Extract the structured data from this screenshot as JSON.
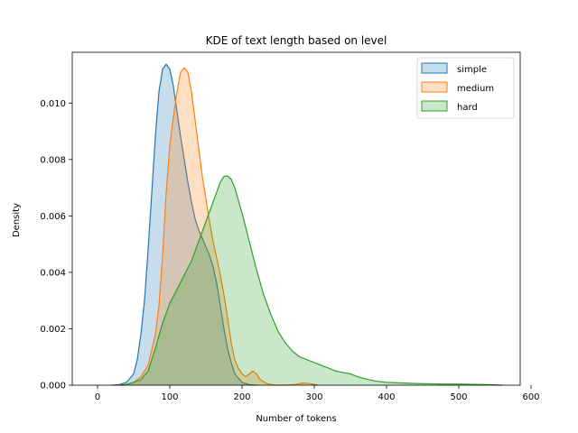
{
  "chart_data": {
    "type": "area",
    "title": "KDE of text length based on level",
    "xlabel": "Number of tokens",
    "ylabel": "Density",
    "xlim": [
      -35,
      585
    ],
    "ylim": [
      0,
      0.0118
    ],
    "xticks": [
      0,
      100,
      200,
      300,
      400,
      500,
      600
    ],
    "xtick_labels": [
      "0",
      "100",
      "200",
      "300",
      "400",
      "500",
      "600"
    ],
    "yticks": [
      0,
      0.002,
      0.004,
      0.006,
      0.008,
      0.01
    ],
    "ytick_labels": [
      "0.000",
      "0.002",
      "0.004",
      "0.006",
      "0.008",
      "0.010"
    ],
    "grid": false,
    "legend_position": "top-right",
    "series": [
      {
        "name": "simple",
        "color": "#1f77b4",
        "fill_opacity": 0.25,
        "points": [
          [
            20,
            0
          ],
          [
            30,
            2e-05
          ],
          [
            40,
            0.0001
          ],
          [
            50,
            0.0004
          ],
          [
            55,
            0.0009
          ],
          [
            60,
            0.0018
          ],
          [
            65,
            0.003
          ],
          [
            70,
            0.0048
          ],
          [
            75,
            0.0068
          ],
          [
            80,
            0.0088
          ],
          [
            85,
            0.0104
          ],
          [
            90,
            0.0112
          ],
          [
            95,
            0.01138
          ],
          [
            100,
            0.0112
          ],
          [
            105,
            0.0106
          ],
          [
            110,
            0.0097
          ],
          [
            115,
            0.0088
          ],
          [
            120,
            0.008
          ],
          [
            125,
            0.0072
          ],
          [
            130,
            0.0065
          ],
          [
            135,
            0.0059
          ],
          [
            140,
            0.0055
          ],
          [
            145,
            0.0052
          ],
          [
            150,
            0.0049
          ],
          [
            155,
            0.0046
          ],
          [
            160,
            0.0042
          ],
          [
            165,
            0.0036
          ],
          [
            170,
            0.0028
          ],
          [
            175,
            0.002
          ],
          [
            180,
            0.0013
          ],
          [
            185,
            0.0008
          ],
          [
            190,
            0.0004
          ],
          [
            200,
            0.0001
          ],
          [
            210,
            2e-05
          ],
          [
            220,
            0
          ]
        ]
      },
      {
        "name": "medium",
        "color": "#ff7f0e",
        "fill_opacity": 0.25,
        "points": [
          [
            30,
            0
          ],
          [
            40,
            3e-05
          ],
          [
            50,
            0.0001
          ],
          [
            60,
            0.0003
          ],
          [
            70,
            0.0007
          ],
          [
            80,
            0.0018
          ],
          [
            85,
            0.0028
          ],
          [
            90,
            0.0046
          ],
          [
            95,
            0.0068
          ],
          [
            100,
            0.0085
          ],
          [
            105,
            0.0095
          ],
          [
            110,
            0.0104
          ],
          [
            115,
            0.0111
          ],
          [
            120,
            0.01125
          ],
          [
            125,
            0.0111
          ],
          [
            130,
            0.0104
          ],
          [
            135,
            0.0094
          ],
          [
            140,
            0.0084
          ],
          [
            145,
            0.0074
          ],
          [
            150,
            0.0066
          ],
          [
            155,
            0.0058
          ],
          [
            160,
            0.0051
          ],
          [
            165,
            0.0045
          ],
          [
            170,
            0.0039
          ],
          [
            175,
            0.0032
          ],
          [
            180,
            0.0024
          ],
          [
            185,
            0.0015
          ],
          [
            190,
            0.0009
          ],
          [
            195,
            0.0006
          ],
          [
            200,
            0.0004
          ],
          [
            205,
            0.0003
          ],
          [
            210,
            0.0004
          ],
          [
            215,
            0.0005
          ],
          [
            220,
            0.0004
          ],
          [
            225,
            0.0002
          ],
          [
            235,
            5e-05
          ],
          [
            245,
            0
          ],
          [
            260,
            0
          ],
          [
            275,
            3e-05
          ],
          [
            285,
            8e-05
          ],
          [
            295,
            5e-05
          ],
          [
            305,
            0
          ]
        ]
      },
      {
        "name": "hard",
        "color": "#2ca02c",
        "fill_opacity": 0.25,
        "points": [
          [
            30,
            0
          ],
          [
            40,
            2e-05
          ],
          [
            50,
            0.0001
          ],
          [
            60,
            0.0002
          ],
          [
            70,
            0.0005
          ],
          [
            80,
            0.0013
          ],
          [
            90,
            0.0022
          ],
          [
            100,
            0.0029
          ],
          [
            110,
            0.0034
          ],
          [
            120,
            0.0039
          ],
          [
            130,
            0.0044
          ],
          [
            140,
            0.0051
          ],
          [
            150,
            0.0058
          ],
          [
            160,
            0.0065
          ],
          [
            170,
            0.0072
          ],
          [
            175,
            0.0074
          ],
          [
            180,
            0.00742
          ],
          [
            185,
            0.0073
          ],
          [
            190,
            0.007
          ],
          [
            200,
            0.0061
          ],
          [
            210,
            0.0051
          ],
          [
            220,
            0.0041
          ],
          [
            230,
            0.0032
          ],
          [
            240,
            0.0025
          ],
          [
            250,
            0.0019
          ],
          [
            260,
            0.0015
          ],
          [
            270,
            0.0012
          ],
          [
            280,
            0.001
          ],
          [
            290,
            0.0009
          ],
          [
            300,
            0.0008
          ],
          [
            310,
            0.0007
          ],
          [
            320,
            0.0006
          ],
          [
            330,
            0.0005
          ],
          [
            340,
            0.00045
          ],
          [
            350,
            0.0004
          ],
          [
            360,
            0.0003
          ],
          [
            370,
            0.00023
          ],
          [
            380,
            0.00017
          ],
          [
            390,
            0.00013
          ],
          [
            400,
            0.0001
          ],
          [
            420,
            8e-05
          ],
          [
            440,
            6e-05
          ],
          [
            460,
            5e-05
          ],
          [
            480,
            4e-05
          ],
          [
            500,
            4e-05
          ],
          [
            520,
            3e-05
          ],
          [
            540,
            2e-05
          ],
          [
            560,
            0
          ]
        ]
      }
    ]
  }
}
